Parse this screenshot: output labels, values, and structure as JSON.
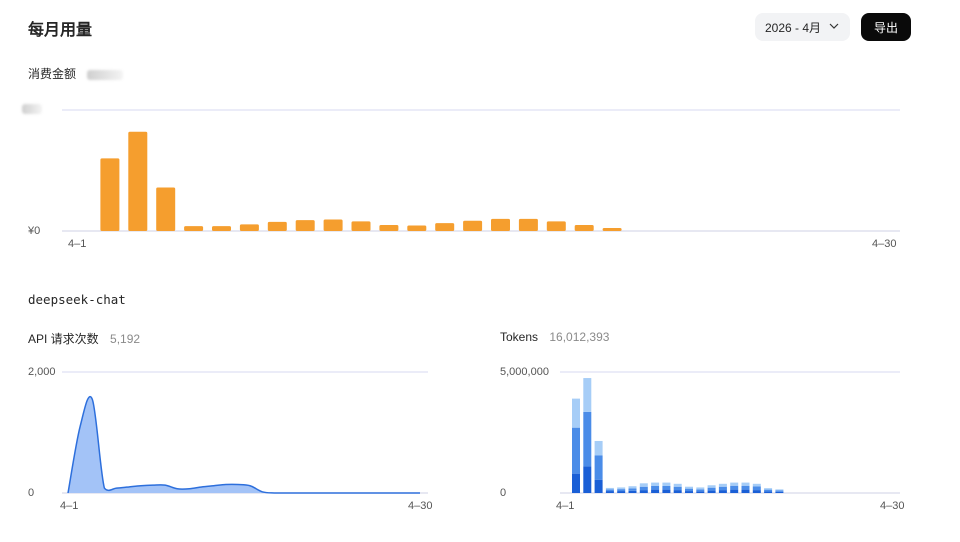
{
  "header": {
    "title": "每月用量",
    "month_select": "2026 - 4月",
    "export_label": "导出"
  },
  "spend": {
    "label": "消费金额",
    "y_zero_label": "¥0",
    "x_start": "4–1",
    "x_end": "4–30"
  },
  "model": {
    "name": "deepseek-chat"
  },
  "requests": {
    "label": "API 请求次数",
    "total": "5,192",
    "y_max_label": "2,000",
    "y_zero_label": "0",
    "x_start": "4–1",
    "x_end": "4–30"
  },
  "tokens": {
    "label": "Tokens",
    "total": "16,012,393",
    "y_max_label": "5,000,000",
    "y_zero_label": "0",
    "x_start": "4–1",
    "x_end": "4–30"
  },
  "chart_data": [
    {
      "type": "bar",
      "categories": [
        "4-1",
        "4-2",
        "4-3",
        "4-4",
        "4-5",
        "4-6",
        "4-7",
        "4-8",
        "4-9",
        "4-10",
        "4-11",
        "4-12",
        "4-13",
        "4-14",
        "4-15",
        "4-16",
        "4-17",
        "4-18",
        "4-19",
        "4-20",
        "4-21",
        "4-22",
        "4-23",
        "4-24",
        "4-25",
        "4-26",
        "4-27",
        "4-28",
        "4-29",
        "4-30"
      ],
      "values": [
        0,
        0.6,
        0.82,
        0.36,
        0.04,
        0.04,
        0.055,
        0.075,
        0.09,
        0.095,
        0.08,
        0.05,
        0.045,
        0.065,
        0.085,
        0.1,
        0.1,
        0.08,
        0.05,
        0.025,
        0,
        0,
        0,
        0,
        0,
        0,
        0,
        0,
        0,
        0
      ],
      "ylim": [
        0,
        1
      ],
      "color": "#f59e2e"
    },
    {
      "type": "area",
      "x": [
        "4-1",
        "4-2",
        "4-3",
        "4-4",
        "4-5",
        "4-6",
        "4-7",
        "4-8",
        "4-9",
        "4-10",
        "4-11",
        "4-12",
        "4-13",
        "4-14",
        "4-15",
        "4-16",
        "4-17",
        "4-18",
        "4-19",
        "4-20",
        "4-21",
        "4-22",
        "4-23",
        "4-24",
        "4-25",
        "4-26",
        "4-27",
        "4-28",
        "4-29",
        "4-30"
      ],
      "values": [
        0,
        1100,
        1550,
        80,
        80,
        100,
        120,
        130,
        130,
        70,
        70,
        100,
        120,
        140,
        140,
        120,
        20,
        0,
        0,
        0,
        0,
        0,
        0,
        0,
        0,
        0,
        0,
        0,
        0,
        0
      ],
      "ylim": [
        0,
        2000
      ],
      "fill": "#a3c3f7",
      "stroke": "#2d6fdc"
    },
    {
      "type": "bar",
      "stacked": true,
      "categories": [
        "4-1",
        "4-2",
        "4-3",
        "4-4",
        "4-5",
        "4-6",
        "4-7",
        "4-8",
        "4-9",
        "4-10",
        "4-11",
        "4-12",
        "4-13",
        "4-14",
        "4-15",
        "4-16",
        "4-17",
        "4-18",
        "4-19",
        "4-20",
        "4-21",
        "4-22",
        "4-23",
        "4-24",
        "4-25",
        "4-26",
        "4-27",
        "4-28",
        "4-29",
        "4-30"
      ],
      "series": [
        {
          "values": [
            800000,
            1100000,
            550000,
            80000,
            80000,
            90000,
            120000,
            140000,
            140000,
            120000,
            80000,
            70000,
            100000,
            120000,
            140000,
            140000,
            120000,
            60000,
            50000,
            0,
            0,
            0,
            0,
            0,
            0,
            0,
            0,
            0,
            0,
            0
          ],
          "color": "#1a5fd6"
        },
        {
          "values": [
            1900000,
            2250000,
            1000000,
            70000,
            80000,
            100000,
            140000,
            150000,
            150000,
            140000,
            100000,
            80000,
            120000,
            140000,
            160000,
            160000,
            150000,
            80000,
            60000,
            0,
            0,
            0,
            0,
            0,
            0,
            0,
            0,
            0,
            0,
            0
          ],
          "color": "#4a8ce8"
        },
        {
          "values": [
            1200000,
            1400000,
            600000,
            60000,
            70000,
            90000,
            140000,
            140000,
            140000,
            120000,
            80000,
            80000,
            100000,
            120000,
            130000,
            130000,
            110000,
            60000,
            40000,
            0,
            0,
            0,
            0,
            0,
            0,
            0,
            0,
            0,
            0,
            0
          ],
          "color": "#a6cdf7"
        }
      ],
      "ylim": [
        0,
        5000000
      ]
    }
  ]
}
